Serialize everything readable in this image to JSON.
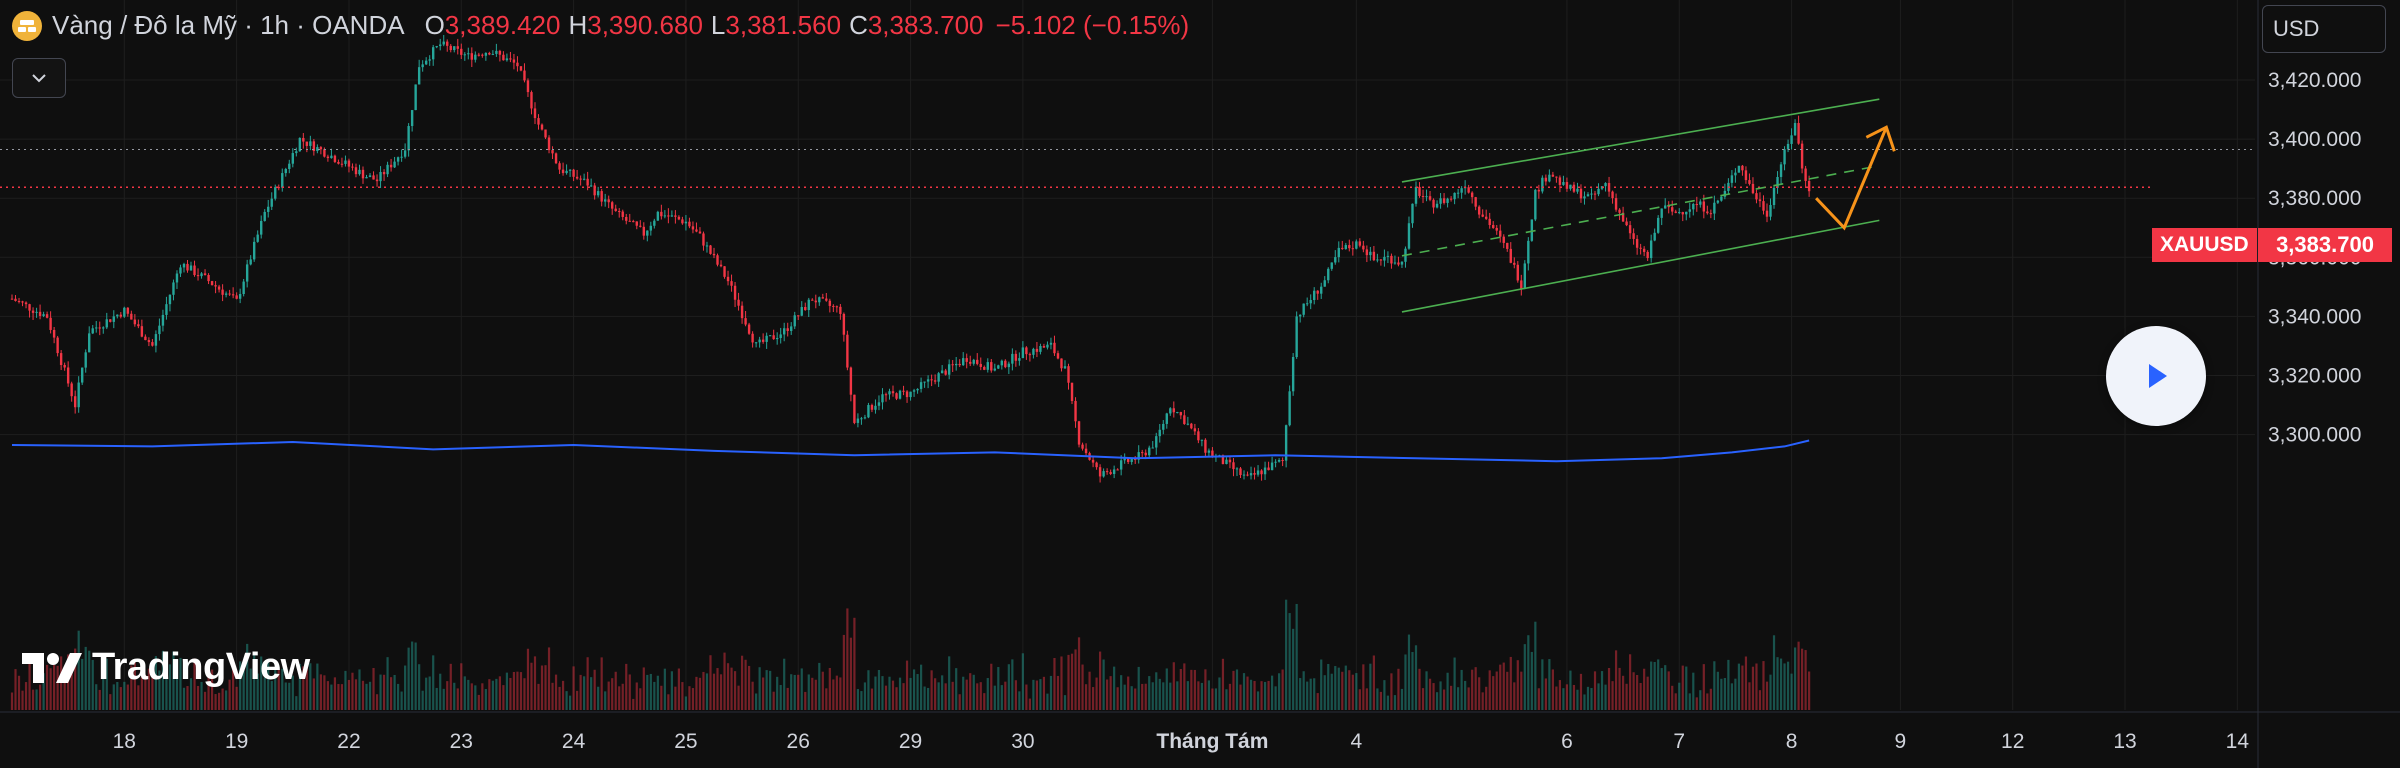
{
  "header": {
    "title": "Vàng / Đô la Mỹ · 1h · OANDA",
    "open_key": "O",
    "open": "3,389.420",
    "high_key": "H",
    "high": "3,390.680",
    "low_key": "L",
    "low": "3,381.560",
    "close_key": "C",
    "close": "3,383.700",
    "change": "−5.102 (−0.15%)"
  },
  "currency": "USD",
  "symbol_label": "XAUUSD",
  "price_label": "3,383.700",
  "logo_text": "TradingView",
  "icons": {
    "symbol": "gold-bars-icon",
    "dropdown": "chevron-down-icon",
    "play": "play-icon",
    "logo": "tradingview-logo-icon"
  },
  "colors": {
    "up": "#26a69a",
    "down": "#f23645",
    "volume_line": "#2962ff",
    "channel": "#4caf50",
    "projection": "#f7931a",
    "price_line": "#f23645"
  },
  "chart_data": {
    "type": "candlestick",
    "title": "Vàng / Đô la Mỹ · 1h · OANDA",
    "ylim": [
      3285,
      3432
    ],
    "y_ticks": [
      "3,420.000",
      "3,400.000",
      "3,380.000",
      "3,360.000",
      "3,340.000",
      "3,320.000",
      "3,300.000"
    ],
    "y_tick_values": [
      3420,
      3400,
      3380,
      3360,
      3340,
      3320,
      3300
    ],
    "x_ticks": [
      "18",
      "19",
      "22",
      "23",
      "24",
      "25",
      "26",
      "29",
      "30",
      "Tháng Tám",
      "4",
      "6",
      "7",
      "8",
      "9",
      "12",
      "13",
      "14"
    ],
    "x_tick_index": [
      32,
      64,
      96,
      128,
      160,
      192,
      224,
      256,
      288,
      342,
      383,
      443,
      475,
      507,
      538,
      570,
      602,
      634
    ],
    "grid": true,
    "current_price": 3383.7,
    "dotted_level": 3396.5,
    "price_path": [
      [
        0,
        3346
      ],
      [
        10,
        3340
      ],
      [
        18,
        3310
      ],
      [
        22,
        3335
      ],
      [
        32,
        3342
      ],
      [
        40,
        3330
      ],
      [
        48,
        3358
      ],
      [
        56,
        3352
      ],
      [
        64,
        3345
      ],
      [
        72,
        3375
      ],
      [
        82,
        3400
      ],
      [
        90,
        3395
      ],
      [
        100,
        3388
      ],
      [
        104,
        3386
      ],
      [
        112,
        3397
      ],
      [
        116,
        3425
      ],
      [
        122,
        3432
      ],
      [
        130,
        3428
      ],
      [
        136,
        3430
      ],
      [
        144,
        3425
      ],
      [
        150,
        3405
      ],
      [
        156,
        3390
      ],
      [
        164,
        3385
      ],
      [
        172,
        3375
      ],
      [
        180,
        3368
      ],
      [
        184,
        3375
      ],
      [
        192,
        3372
      ],
      [
        196,
        3367
      ],
      [
        204,
        3352
      ],
      [
        212,
        3330
      ],
      [
        220,
        3335
      ],
      [
        228,
        3346
      ],
      [
        236,
        3342
      ],
      [
        240,
        3304
      ],
      [
        248,
        3313
      ],
      [
        256,
        3314
      ],
      [
        264,
        3320
      ],
      [
        272,
        3326
      ],
      [
        280,
        3322
      ],
      [
        288,
        3328
      ],
      [
        296,
        3330
      ],
      [
        300,
        3322
      ],
      [
        304,
        3298
      ],
      [
        310,
        3286
      ],
      [
        316,
        3290
      ],
      [
        322,
        3293
      ],
      [
        326,
        3298
      ],
      [
        330,
        3310
      ],
      [
        334,
        3305
      ],
      [
        340,
        3295
      ],
      [
        346,
        3290
      ],
      [
        352,
        3285
      ],
      [
        358,
        3289
      ],
      [
        362,
        3291
      ],
      [
        366,
        3340
      ],
      [
        370,
        3346
      ],
      [
        374,
        3352
      ],
      [
        378,
        3362
      ],
      [
        384,
        3365
      ],
      [
        388,
        3359
      ],
      [
        392,
        3360
      ],
      [
        396,
        3358
      ],
      [
        400,
        3383
      ],
      [
        404,
        3378
      ],
      [
        410,
        3380
      ],
      [
        414,
        3385
      ],
      [
        418,
        3376
      ],
      [
        422,
        3370
      ],
      [
        426,
        3362
      ],
      [
        430,
        3351
      ],
      [
        434,
        3382
      ],
      [
        438,
        3389
      ],
      [
        442,
        3384
      ],
      [
        446,
        3382
      ],
      [
        450,
        3380
      ],
      [
        454,
        3385
      ],
      [
        458,
        3375
      ],
      [
        462,
        3365
      ],
      [
        466,
        3360
      ],
      [
        470,
        3377
      ],
      [
        474,
        3375
      ],
      [
        480,
        3378
      ],
      [
        484,
        3376
      ],
      [
        488,
        3382
      ],
      [
        492,
        3392
      ],
      [
        496,
        3382
      ],
      [
        500,
        3375
      ],
      [
        504,
        3392
      ],
      [
        506,
        3398
      ],
      [
        508,
        3406
      ],
      [
        510,
        3390
      ],
      [
        512,
        3383.7
      ]
    ],
    "volume_baseline_path": [
      [
        0,
        3296.5
      ],
      [
        40,
        3296.0
      ],
      [
        80,
        3297.5
      ],
      [
        120,
        3295.0
      ],
      [
        160,
        3296.5
      ],
      [
        200,
        3294.5
      ],
      [
        240,
        3293.0
      ],
      [
        280,
        3294.0
      ],
      [
        320,
        3292.0
      ],
      [
        360,
        3293.0
      ],
      [
        400,
        3292.0
      ],
      [
        440,
        3291.0
      ],
      [
        470,
        3292.0
      ],
      [
        490,
        3294.0
      ],
      [
        505,
        3296.0
      ],
      [
        512,
        3298.0
      ]
    ],
    "annotations": {
      "channel_upper": [
        [
          396,
          3385.5
        ],
        [
          532,
          3413.5
        ]
      ],
      "channel_middle": [
        [
          396,
          3360.5
        ],
        [
          532,
          3391
        ]
      ],
      "channel_lower": [
        [
          396,
          3341.5
        ],
        [
          532,
          3372.5
        ]
      ],
      "projection_path": [
        [
          514,
          3380
        ],
        [
          522,
          3370
        ],
        [
          534,
          3404
        ]
      ]
    }
  }
}
